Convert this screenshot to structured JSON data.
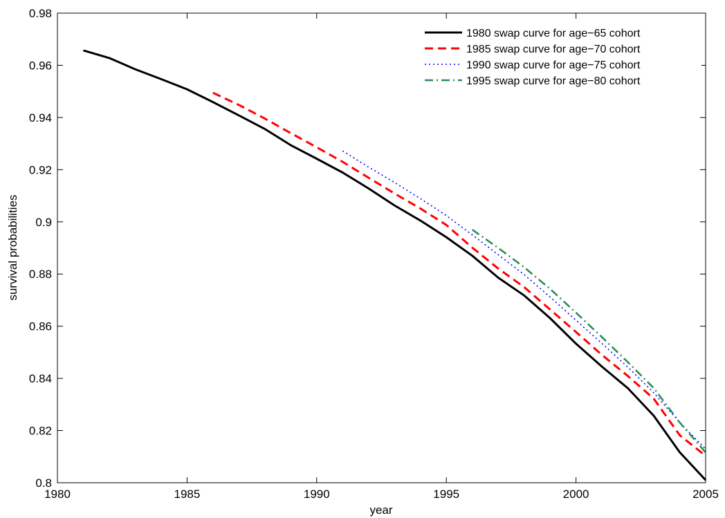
{
  "chart_data": {
    "type": "line",
    "title": "",
    "xlabel": "year",
    "ylabel": "survival probabilities",
    "xlim": [
      1980,
      2005
    ],
    "ylim": [
      0.8,
      0.98
    ],
    "x_ticks": [
      1980,
      1985,
      1990,
      1995,
      2000,
      2005
    ],
    "x_tick_labels": [
      "1980",
      "1985",
      "1990",
      "1995",
      "2000",
      "2005"
    ],
    "y_ticks": [
      0.8,
      0.82,
      0.84,
      0.86,
      0.88,
      0.9,
      0.92,
      0.94,
      0.96,
      0.98
    ],
    "y_tick_labels": [
      "0.8",
      "0.82",
      "0.84",
      "0.86",
      "0.88",
      "0.9",
      "0.92",
      "0.94",
      "0.96",
      "0.98"
    ],
    "grid": false,
    "legend_position": "top-right",
    "series": [
      {
        "name": "1980 swap curve for age−65 cohort",
        "color": "#000000",
        "style": "solid",
        "x": [
          1981,
          1982,
          1983,
          1984,
          1985,
          1986,
          1987,
          1988,
          1989,
          1990,
          1991,
          1992,
          1993,
          1994,
          1995,
          1996,
          1997,
          1998,
          1999,
          2000,
          2001,
          2002,
          2003,
          2004,
          2005
        ],
        "y": [
          0.9657,
          0.9628,
          0.9585,
          0.9547,
          0.9508,
          0.9459,
          0.9408,
          0.9356,
          0.9294,
          0.9242,
          0.9189,
          0.9128,
          0.9063,
          0.9005,
          0.8941,
          0.887,
          0.8786,
          0.8718,
          0.8631,
          0.8533,
          0.8445,
          0.8362,
          0.8257,
          0.8117,
          0.801
        ]
      },
      {
        "name": "1985 swap curve for age−70 cohort",
        "color": "#ff0000",
        "style": "dashed",
        "x": [
          1986,
          1987,
          1988,
          1989,
          1990,
          1991,
          1992,
          1993,
          1994,
          1995,
          1996,
          1997,
          1998,
          1999,
          2000,
          2001,
          2002,
          2003,
          2004,
          2005
        ],
        "y": [
          0.9495,
          0.9448,
          0.9396,
          0.934,
          0.9286,
          0.923,
          0.9169,
          0.9109,
          0.9051,
          0.8988,
          0.8901,
          0.8821,
          0.875,
          0.8664,
          0.8578,
          0.849,
          0.8409,
          0.8322,
          0.8182,
          0.8103
        ]
      },
      {
        "name": "1990 swap curve for age−75 cohort",
        "color": "#0000ff",
        "style": "dotted",
        "x": [
          1991,
          1992,
          1993,
          1994,
          1995,
          1996,
          1997,
          1998,
          1999,
          2000,
          2001,
          2002,
          2003,
          2004,
          2005
        ],
        "y": [
          0.9272,
          0.921,
          0.9151,
          0.9089,
          0.9024,
          0.895,
          0.8874,
          0.8798,
          0.8712,
          0.8623,
          0.8534,
          0.8443,
          0.8345,
          0.8231,
          0.8129
        ]
      },
      {
        "name": "1995 swap curve for age−80 cohort",
        "color": "#2e8b57",
        "style": "dashdot",
        "x": [
          1996,
          1997,
          1998,
          1999,
          2000,
          2001,
          2002,
          2003,
          2004,
          2005
        ],
        "y": [
          0.897,
          0.89,
          0.8826,
          0.8743,
          0.8652,
          0.8558,
          0.8462,
          0.8363,
          0.8231,
          0.8116
        ]
      }
    ]
  }
}
